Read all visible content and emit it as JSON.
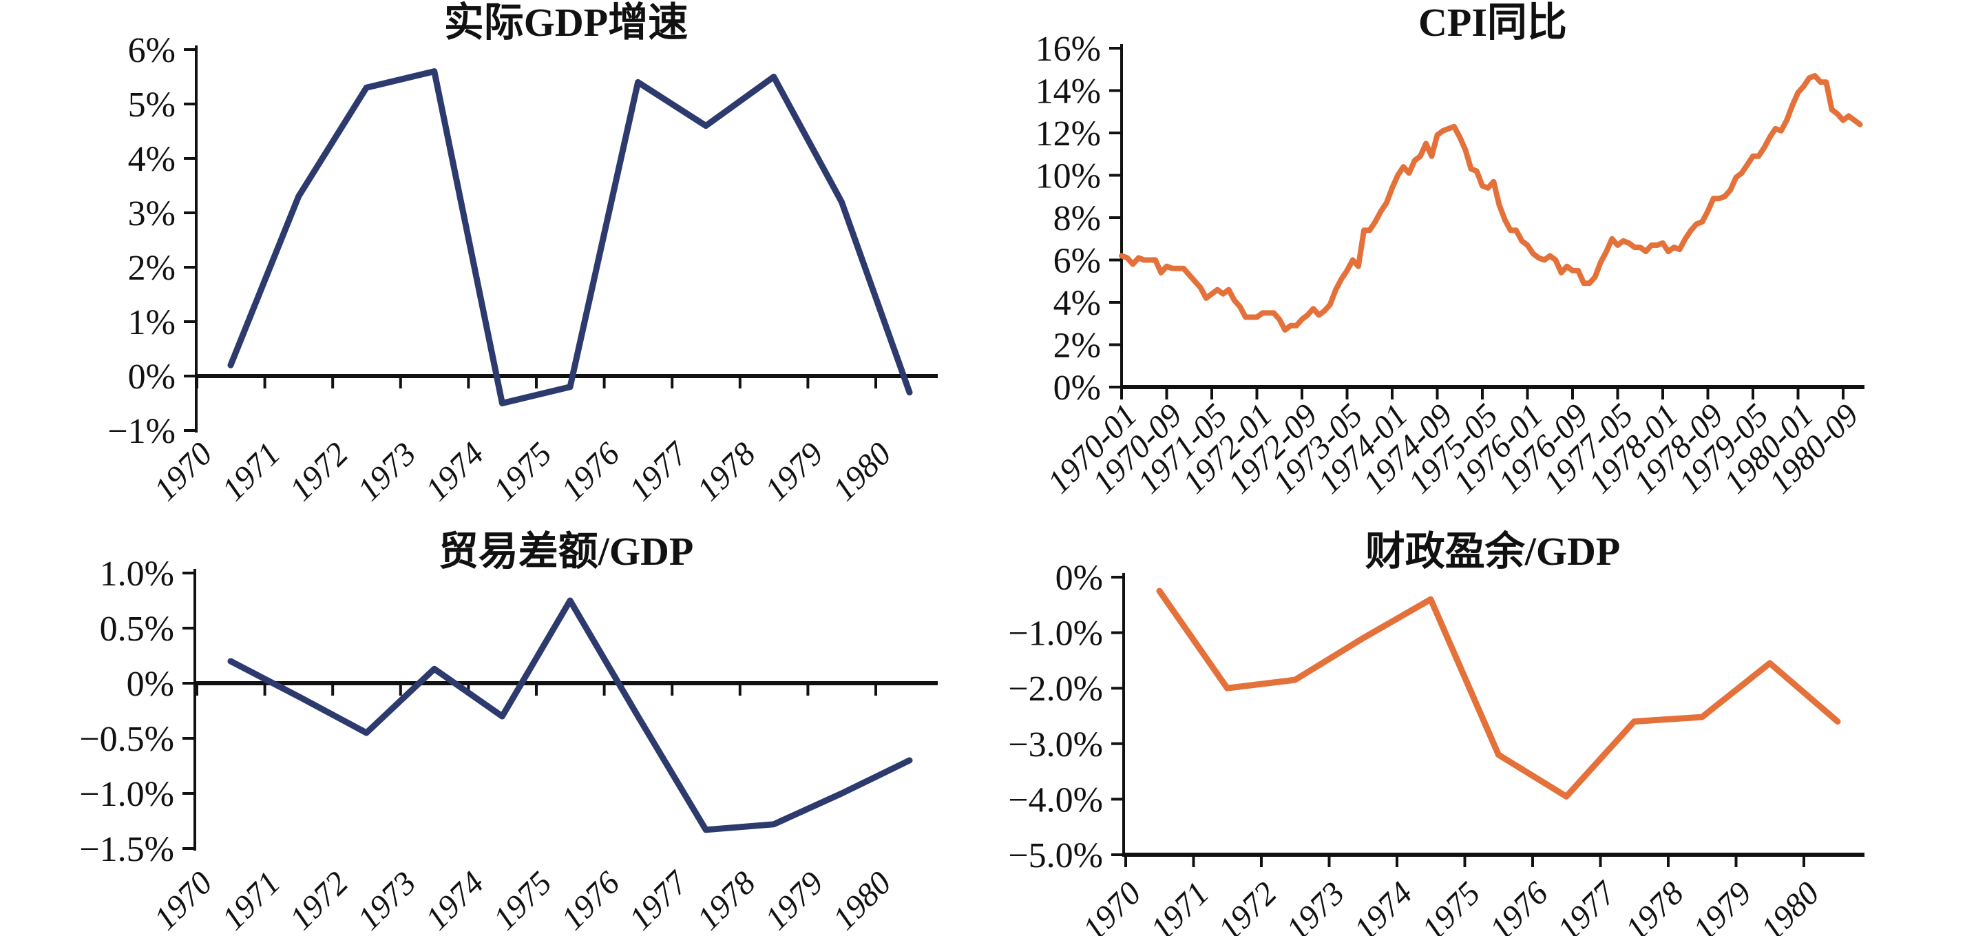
{
  "figure": {
    "background": "#ffffff",
    "blue": "#2d3a6d",
    "orange": "#e5713a",
    "axis_color": "#111111"
  },
  "chart_data": [
    {
      "id": "real-gdp-growth",
      "type": "line",
      "title": "实际GDP增速",
      "color": "#2d3a6d",
      "unit": "%",
      "categories": [
        "1970",
        "1971",
        "1972",
        "1973",
        "1974",
        "1975",
        "1976",
        "1977",
        "1978",
        "1979",
        "1980"
      ],
      "values": [
        0.2,
        3.3,
        5.3,
        5.6,
        -0.5,
        -0.2,
        5.4,
        4.6,
        5.5,
        3.2,
        -0.3
      ],
      "ylim": [
        -1,
        6
      ],
      "ytick_values": [
        6,
        5,
        4,
        3,
        2,
        1,
        0,
        -1
      ],
      "ytick_labels": [
        "6%",
        "5%",
        "4%",
        "3%",
        "2%",
        "1%",
        "0%",
        "−1%"
      ],
      "xtick_labels": [
        "1970",
        "1971",
        "1972",
        "1973",
        "1974",
        "1975",
        "1976",
        "1977",
        "1978",
        "1979",
        "1980"
      ],
      "x_axis_at": 0,
      "grid": false,
      "legend": "none"
    },
    {
      "id": "cpi-yoy",
      "type": "line",
      "title": "CPI同比",
      "color": "#e5713a",
      "unit": "%",
      "frequency": "monthly",
      "x_start": "1970-01",
      "x_end": "1980-12",
      "values": [
        6.2,
        6.1,
        5.8,
        6.1,
        6.0,
        6.0,
        6.0,
        5.4,
        5.7,
        5.6,
        5.6,
        5.6,
        5.3,
        5.0,
        4.7,
        4.2,
        4.4,
        4.6,
        4.4,
        4.6,
        4.1,
        3.8,
        3.3,
        3.3,
        3.3,
        3.5,
        3.5,
        3.5,
        3.2,
        2.7,
        2.9,
        2.9,
        3.2,
        3.4,
        3.7,
        3.4,
        3.6,
        3.9,
        4.6,
        5.1,
        5.5,
        6.0,
        5.7,
        7.4,
        7.4,
        7.8,
        8.3,
        8.7,
        9.4,
        10.0,
        10.4,
        10.1,
        10.7,
        10.9,
        11.5,
        10.9,
        11.9,
        12.1,
        12.2,
        12.3,
        11.8,
        11.2,
        10.3,
        10.2,
        9.5,
        9.4,
        9.7,
        8.6,
        7.9,
        7.4,
        7.4,
        6.9,
        6.7,
        6.3,
        6.1,
        6.0,
        6.2,
        6.0,
        5.4,
        5.7,
        5.5,
        5.5,
        4.9,
        4.9,
        5.2,
        5.9,
        6.4,
        7.0,
        6.7,
        6.9,
        6.8,
        6.6,
        6.6,
        6.4,
        6.7,
        6.7,
        6.8,
        6.4,
        6.6,
        6.5,
        7.0,
        7.4,
        7.7,
        7.8,
        8.3,
        8.9,
        8.9,
        9.0,
        9.3,
        9.9,
        10.1,
        10.5,
        10.9,
        10.9,
        11.3,
        11.8,
        12.2,
        12.1,
        12.6,
        13.3,
        13.9,
        14.2,
        14.6,
        14.7,
        14.4,
        14.4,
        13.1,
        12.9,
        12.6,
        12.8,
        12.6,
        12.4
      ],
      "ylim": [
        0,
        16
      ],
      "ytick_values": [
        16,
        14,
        12,
        10,
        8,
        6,
        4,
        2,
        0
      ],
      "ytick_labels": [
        "16%",
        "14%",
        "12%",
        "10%",
        "8%",
        "6%",
        "4%",
        "2%",
        "0%"
      ],
      "xtick_labels": [
        "1970-01",
        "1970-09",
        "1971-05",
        "1972-01",
        "1972-09",
        "1973-05",
        "1974-01",
        "1974-09",
        "1975-05",
        "1976-01",
        "1976-09",
        "1977-05",
        "1978-01",
        "1978-09",
        "1979-05",
        "1980-01",
        "1980-09"
      ],
      "x_axis_at": 0,
      "grid": false,
      "legend": "none"
    },
    {
      "id": "trade-balance-to-gdp",
      "type": "line",
      "title": "贸易差额/GDP",
      "color": "#2d3a6d",
      "unit": "%",
      "categories": [
        "1970",
        "1971",
        "1972",
        "1973",
        "1974",
        "1975",
        "1976",
        "1977",
        "1978",
        "1979",
        "1980"
      ],
      "values": [
        0.2,
        -0.12,
        -0.45,
        0.13,
        -0.3,
        0.75,
        -0.3,
        -1.33,
        -1.28,
        -1.0,
        -0.7
      ],
      "ylim": [
        -1.5,
        1.0
      ],
      "ytick_values": [
        1.0,
        0.5,
        0,
        -0.5,
        -1.0,
        -1.5
      ],
      "ytick_labels": [
        "1.0%",
        "0.5%",
        "0%",
        "−0.5%",
        "−1.0%",
        "−1.5%"
      ],
      "xtick_labels": [
        "1970",
        "1971",
        "1972",
        "1973",
        "1974",
        "1975",
        "1976",
        "1977",
        "1978",
        "1979",
        "1980"
      ],
      "x_axis_at": 0,
      "grid": false,
      "legend": "none"
    },
    {
      "id": "fiscal-surplus-to-gdp",
      "type": "line",
      "title": "财政盈余/GDP",
      "color": "#e5713a",
      "unit": "%",
      "categories": [
        "1970",
        "1971",
        "1972",
        "1973",
        "1974",
        "1975",
        "1976",
        "1977",
        "1978",
        "1979",
        "1980"
      ],
      "values": [
        -0.25,
        -2.0,
        -1.85,
        -1.1,
        -0.4,
        -3.2,
        -3.95,
        -2.6,
        -2.52,
        -1.55,
        -2.6
      ],
      "ylim": [
        -5.0,
        0
      ],
      "ytick_values": [
        0,
        -1,
        -2,
        -3,
        -4,
        -5
      ],
      "ytick_labels": [
        "0%",
        "−1.0%",
        "−2.0%",
        "−3.0%",
        "−4.0%",
        "−5.0%"
      ],
      "xtick_labels": [
        "1970",
        "1971",
        "1972",
        "1973",
        "1974",
        "1975",
        "1976",
        "1977",
        "1978",
        "1979",
        "1980"
      ],
      "x_axis_at": -5,
      "grid": false,
      "legend": "none"
    }
  ]
}
